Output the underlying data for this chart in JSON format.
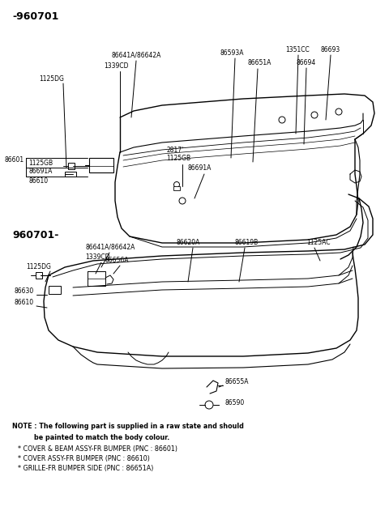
{
  "background_color": "#ffffff",
  "line_color": "#000000",
  "fig_width": 4.8,
  "fig_height": 6.57,
  "dpi": 100,
  "section1_label": "-960701",
  "section2_label": "960701-",
  "note_line1": "NOTE : The following part is supplied in a raw state and should",
  "note_line2": "    be painted to match the body colour.",
  "note_line3": "  * COVER & BEAM ASSY-FR BUMPER (PNC : 86601)",
  "note_line4": "  * COVER ASSY-FR BUMPER (PNC : 86610)",
  "note_line5": "  * GRILLE-FR BUMPER SIDE (PNC : 86651A)"
}
